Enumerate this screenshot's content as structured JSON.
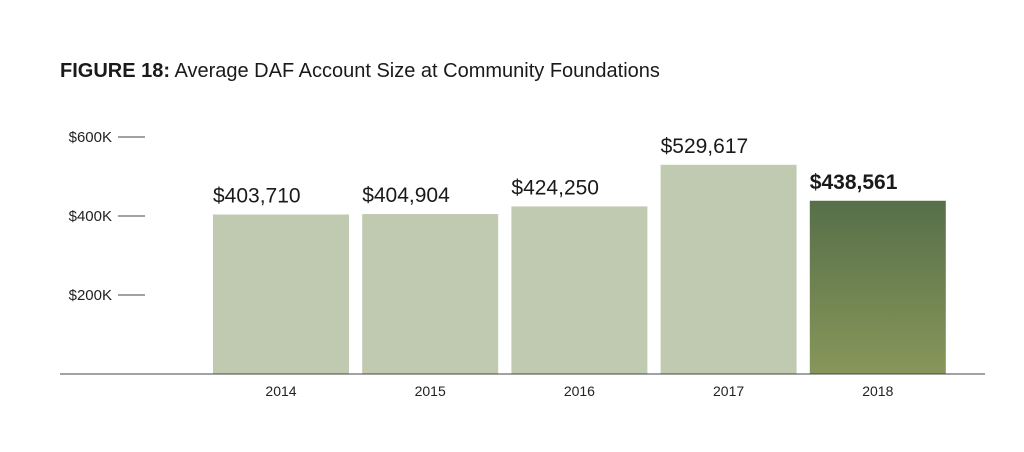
{
  "figure": {
    "label": "FIGURE 18:",
    "title": "Average DAF Account Size at Community Foundations"
  },
  "chart_data": {
    "type": "bar",
    "categories": [
      "2014",
      "2015",
      "2016",
      "2017",
      "2018"
    ],
    "values": [
      403710,
      404904,
      424250,
      529617,
      438561
    ],
    "value_labels": [
      "$403,710",
      "$404,904",
      "$424,250",
      "$529,617",
      "$438,561"
    ],
    "highlight_index": 4,
    "yticks": [
      200000,
      400000,
      600000
    ],
    "ytick_labels": [
      "$200K",
      "$400K",
      "$600K"
    ],
    "ylim": [
      0,
      600000
    ],
    "xlabel": "",
    "ylabel": "",
    "grid": false,
    "colors": {
      "bar": "#c0cab0",
      "highlight_top": "#576f49",
      "highlight_bottom": "#87975a",
      "axis": "#444444"
    }
  }
}
